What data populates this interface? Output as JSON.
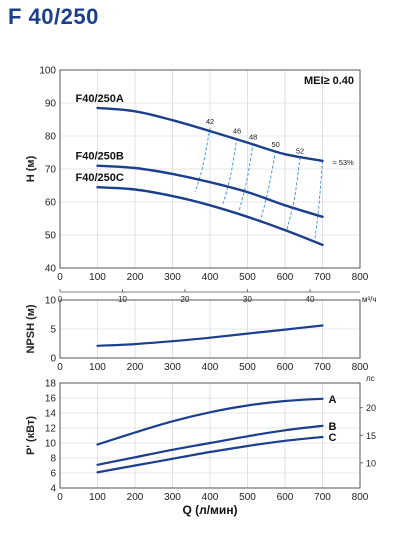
{
  "title": "F 40/250",
  "colors": {
    "curve": "#1b3f8c",
    "iso": "#3b8fd6",
    "frame": "#555555",
    "grid": "#cfcfcf"
  },
  "chart_data": [
    {
      "id": "head",
      "type": "line",
      "ylabel": "H (м)",
      "annotation": "MEI≥ 0.40",
      "xlim": [
        0,
        800
      ],
      "ylim": [
        40,
        100
      ],
      "xticks": [
        "0",
        "100",
        "200",
        "300",
        "400",
        "500",
        "600",
        "700",
        "800"
      ],
      "yticks": [
        "40",
        "50",
        "60",
        "70",
        "80",
        "90",
        "100"
      ],
      "secondary_x": {
        "unit": "м³/ч",
        "ticks": [
          "0",
          "10",
          "20",
          "30",
          "40"
        ]
      },
      "grid": true,
      "series": [
        {
          "name": "F40/250A",
          "x": [
            100,
            200,
            300,
            400,
            500,
            600,
            700
          ],
          "y": [
            88.5,
            87.5,
            84.8,
            81.5,
            78.0,
            74.5,
            72.5
          ]
        },
        {
          "name": "F40/250B",
          "x": [
            100,
            200,
            300,
            400,
            500,
            600,
            700
          ],
          "y": [
            71.0,
            70.3,
            68.5,
            66.0,
            63.0,
            59.0,
            55.5
          ]
        },
        {
          "name": "F40/250C",
          "x": [
            100,
            200,
            300,
            400,
            500,
            600,
            700
          ],
          "y": [
            64.5,
            63.8,
            61.8,
            59.0,
            55.5,
            51.5,
            47.0
          ]
        }
      ],
      "efficiency_lines": [
        {
          "label": "42",
          "points": [
            [
              400,
              82.5
            ],
            [
              380,
              70.5
            ],
            [
              360,
              63.0
            ]
          ]
        },
        {
          "label": "46",
          "points": [
            [
              472,
              79.5
            ],
            [
              455,
              68.0
            ],
            [
              435,
              59.5
            ]
          ]
        },
        {
          "label": "48",
          "points": [
            [
              515,
              77.8
            ],
            [
              498,
              66.5
            ],
            [
              478,
              57.5
            ]
          ]
        },
        {
          "label": "50",
          "points": [
            [
              575,
              75.5
            ],
            [
              555,
              63.5
            ],
            [
              535,
              54.5
            ]
          ]
        },
        {
          "label": "52",
          "points": [
            [
              640,
              73.5
            ],
            [
              625,
              61.0
            ],
            [
              605,
              51.5
            ]
          ]
        },
        {
          "label": "≈ 53%",
          "points": [
            [
              700,
              72.5
            ],
            [
              690,
              58.5
            ],
            [
              680,
              49.0
            ]
          ]
        }
      ]
    },
    {
      "id": "npsh",
      "type": "line",
      "ylabel": "NPSH (м)",
      "xlim": [
        0,
        800
      ],
      "ylim": [
        0,
        10
      ],
      "xticks": [
        "0",
        "100",
        "200",
        "300",
        "400",
        "500",
        "600",
        "700",
        "800"
      ],
      "yticks": [
        "0",
        "5",
        "10"
      ],
      "grid": true,
      "series": [
        {
          "name": "",
          "x": [
            100,
            200,
            300,
            400,
            500,
            600,
            700
          ],
          "y": [
            2.1,
            2.4,
            2.9,
            3.5,
            4.2,
            4.9,
            5.6
          ]
        }
      ]
    },
    {
      "id": "power",
      "type": "line",
      "ylabel": "P' (кВт)",
      "xlabel": "Q (л/мин)",
      "xlim": [
        0,
        800
      ],
      "ylim": [
        4,
        18
      ],
      "xticks": [
        "0",
        "100",
        "200",
        "300",
        "400",
        "500",
        "600",
        "700",
        "800"
      ],
      "yticks": [
        "4",
        "6",
        "8",
        "10",
        "12",
        "14",
        "16",
        "18"
      ],
      "secondary_y": {
        "unit": "лс",
        "ticks": [
          "10",
          "15",
          "20"
        ]
      },
      "grid": true,
      "series": [
        {
          "name": "A",
          "x": [
            100,
            200,
            300,
            400,
            500,
            600,
            700
          ],
          "y": [
            9.8,
            11.4,
            12.9,
            14.1,
            15.0,
            15.6,
            15.9
          ]
        },
        {
          "name": "B",
          "x": [
            100,
            200,
            300,
            400,
            500,
            600,
            700
          ],
          "y": [
            7.1,
            8.1,
            9.1,
            10.0,
            10.9,
            11.7,
            12.3
          ]
        },
        {
          "name": "C",
          "x": [
            100,
            200,
            300,
            400,
            500,
            600,
            700
          ],
          "y": [
            6.1,
            7.0,
            7.9,
            8.8,
            9.6,
            10.3,
            10.8
          ]
        }
      ]
    }
  ]
}
